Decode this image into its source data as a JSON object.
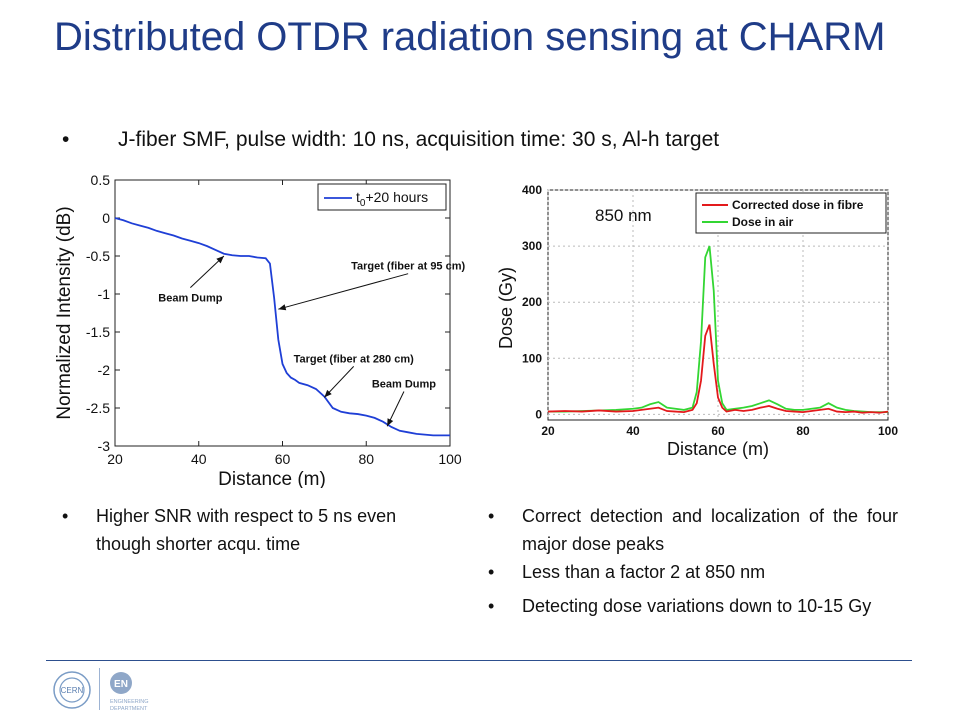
{
  "title": "Distributed OTDR radiation sensing at CHARM",
  "subtitle": "J-fiber SMF, pulse width: 10 ns, acquisition time: 30 s, Al-h target",
  "bullet_char": "•",
  "left_bullets": [
    "Higher SNR with respect to 5 ns even though shorter acqu. time"
  ],
  "right_bullets": [
    "Correct detection and localization of the four major dose peaks",
    "Less than a factor 2 at 850 nm",
    "Detecting dose variations down to 10-15 Gy"
  ],
  "colors": {
    "title": "#1f3c88",
    "otdr_line": "#1f3fd6",
    "fibre": "#e31a1c",
    "air": "#33d633",
    "footer": "#2d4f8e"
  },
  "logos": {
    "cern": "CERN",
    "en_badge": "EN",
    "en_text_1": "ENGINEERING",
    "en_text_2": "DEPARTMENT"
  },
  "chart_data": [
    {
      "type": "line",
      "xlabel": "Distance (m)",
      "ylabel": "Normalized Intensity (dB)",
      "xlim": [
        20,
        100
      ],
      "ylim": [
        -3,
        0.5
      ],
      "xticks": [
        20,
        40,
        60,
        80,
        100
      ],
      "yticks": [
        "0.5",
        "0",
        "-0.5",
        "-1",
        "-1.5",
        "-2",
        "-2.5",
        "-3"
      ],
      "legend": {
        "placement": "top-right",
        "label_base": "t",
        "label_sub": "0",
        "label_rest": "+20 hours"
      },
      "series": [
        {
          "x": [
            20,
            22,
            24,
            26,
            28,
            30,
            32,
            34,
            36,
            38,
            40,
            42,
            44,
            46,
            48,
            50,
            52,
            54,
            56,
            57,
            58,
            59,
            60,
            61,
            62,
            63,
            64,
            66,
            68,
            70,
            72,
            74,
            76,
            78,
            80,
            82,
            84,
            86,
            88,
            90,
            92,
            94,
            96,
            98,
            100
          ],
          "y": [
            0,
            -0.03,
            -0.07,
            -0.1,
            -0.13,
            -0.17,
            -0.2,
            -0.23,
            -0.27,
            -0.3,
            -0.33,
            -0.37,
            -0.42,
            -0.47,
            -0.49,
            -0.5,
            -0.5,
            -0.52,
            -0.53,
            -0.6,
            -1.05,
            -1.6,
            -1.92,
            -2.04,
            -2.1,
            -2.13,
            -2.17,
            -2.2,
            -2.25,
            -2.35,
            -2.5,
            -2.55,
            -2.57,
            -2.58,
            -2.6,
            -2.63,
            -2.68,
            -2.75,
            -2.8,
            -2.82,
            -2.84,
            -2.85,
            -2.86,
            -2.86,
            -2.86
          ]
        }
      ],
      "annotations": [
        {
          "text": "Beam Dump",
          "x": 38,
          "y": -1.1,
          "arrow_to": [
            46,
            -0.5
          ]
        },
        {
          "text": "Target (fiber at 95 cm)",
          "x": 90,
          "y": -0.68,
          "arrow_to": [
            59,
            -1.2
          ]
        },
        {
          "text": "Target (fiber at 280 cm)",
          "x": 77,
          "y": -1.9,
          "arrow_to": [
            70,
            -2.36
          ]
        },
        {
          "text": "Beam Dump",
          "x": 89,
          "y": -2.23,
          "arrow_to": [
            85,
            -2.74
          ]
        }
      ]
    },
    {
      "type": "line",
      "xlabel": "Distance (m)",
      "ylabel": "Dose (Gy)",
      "xlim": [
        20,
        100
      ],
      "ylim": [
        -10,
        400
      ],
      "xticks": [
        20,
        40,
        60,
        80,
        100
      ],
      "yticks": [
        0,
        100,
        200,
        300,
        400
      ],
      "annotation": "850 nm",
      "grid": true,
      "legend_placement": "top-right",
      "series": [
        {
          "name": "Corrected dose in fibre",
          "x": [
            20,
            24,
            28,
            32,
            36,
            40,
            42,
            44,
            46,
            48,
            50,
            52,
            54,
            55,
            56,
            57,
            58,
            59,
            60,
            61,
            62,
            64,
            66,
            68,
            70,
            72,
            74,
            76,
            78,
            80,
            82,
            84,
            86,
            88,
            90,
            92,
            94,
            96,
            98,
            100
          ],
          "y": [
            5,
            6,
            5,
            7,
            5,
            6,
            8,
            10,
            12,
            6,
            5,
            4,
            8,
            20,
            60,
            140,
            160,
            90,
            30,
            12,
            5,
            8,
            6,
            8,
            12,
            15,
            10,
            6,
            5,
            4,
            6,
            8,
            10,
            5,
            4,
            5,
            3,
            4,
            3,
            5
          ]
        },
        {
          "name": "Dose in air",
          "x": [
            20,
            24,
            28,
            32,
            36,
            40,
            42,
            44,
            46,
            48,
            50,
            52,
            54,
            55,
            56,
            57,
            58,
            59,
            60,
            61,
            62,
            64,
            66,
            68,
            70,
            72,
            74,
            76,
            78,
            80,
            82,
            84,
            86,
            88,
            90,
            92,
            94,
            96,
            98,
            100
          ],
          "y": [
            5,
            5,
            6,
            7,
            8,
            10,
            12,
            18,
            22,
            12,
            10,
            8,
            12,
            40,
            130,
            280,
            300,
            220,
            60,
            20,
            8,
            10,
            12,
            15,
            20,
            25,
            18,
            10,
            8,
            8,
            10,
            12,
            20,
            12,
            8,
            6,
            5,
            4,
            4,
            4
          ]
        }
      ]
    }
  ]
}
